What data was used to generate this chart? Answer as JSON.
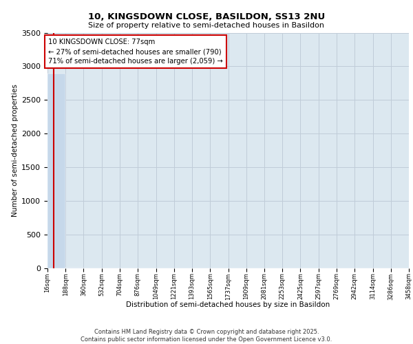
{
  "title_line1": "10, KINGSDOWN CLOSE, BASILDON, SS13 2NU",
  "title_line2": "Size of property relative to semi-detached houses in Basildon",
  "xlabel": "Distribution of semi-detached houses by size in Basildon",
  "ylabel": "Number of semi-detached properties",
  "property_label": "10 KINGSDOWN CLOSE: 77sqm",
  "property_size": 77,
  "pct_smaller": 27,
  "n_smaller": 790,
  "pct_larger": 71,
  "n_larger": 2059,
  "ylim": [
    0,
    3500
  ],
  "bar_color": "#c6d8ea",
  "bar_edge_color": "#c6d8ea",
  "highlight_color": "#cc0000",
  "annotation_box_color": "#cc0000",
  "grid_color": "#c0ccd8",
  "background_color": "#dce8f0",
  "bin_edges": [
    16,
    188,
    360,
    532,
    704,
    876,
    1049,
    1221,
    1393,
    1565,
    1737,
    1909,
    2081,
    2253,
    2425,
    2597,
    2769,
    2942,
    3114,
    3286,
    3458
  ],
  "bin_labels": [
    "16sqm",
    "188sqm",
    "360sqm",
    "532sqm",
    "704sqm",
    "876sqm",
    "1049sqm",
    "1221sqm",
    "1393sqm",
    "1565sqm",
    "1737sqm",
    "1909sqm",
    "2081sqm",
    "2253sqm",
    "2425sqm",
    "2597sqm",
    "2769sqm",
    "2942sqm",
    "3114sqm",
    "3286sqm",
    "3458sqm"
  ],
  "bar_heights": [
    2890,
    8,
    5,
    2,
    1,
    0,
    0,
    0,
    0,
    0,
    0,
    0,
    0,
    0,
    0,
    0,
    0,
    0,
    0,
    0
  ],
  "footer_line1": "Contains HM Land Registry data © Crown copyright and database right 2025.",
  "footer_line2": "Contains public sector information licensed under the Open Government Licence v3.0."
}
